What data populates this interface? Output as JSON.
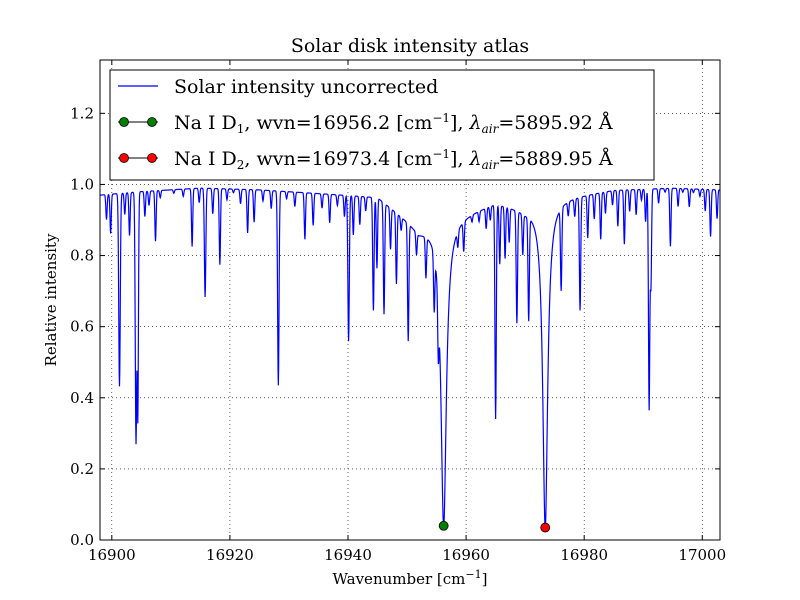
{
  "chart_data": {
    "type": "line",
    "title": "Solar disk intensity atlas",
    "xlabel": "Wavenumber [cm⁻¹]",
    "ylabel": "Relative intensity",
    "xlim": [
      16898,
      17003
    ],
    "ylim": [
      0.0,
      1.35
    ],
    "xticks": [
      16900,
      16920,
      16940,
      16960,
      16980,
      17000
    ],
    "yticks": [
      0.0,
      0.2,
      0.4,
      0.6,
      0.8,
      1.0,
      1.2
    ],
    "xtick_labels": [
      "16900",
      "16920",
      "16940",
      "16960",
      "16980",
      "17000"
    ],
    "ytick_labels": [
      "0.0",
      "0.2",
      "0.4",
      "0.6",
      "0.8",
      "1.0",
      "1.2"
    ],
    "grid": true,
    "legend_position": "top-left",
    "continuum": [
      [
        16898,
        0.97
      ],
      [
        16905,
        0.98
      ],
      [
        16915,
        0.99
      ],
      [
        16925,
        0.985
      ],
      [
        16935,
        0.975
      ],
      [
        16945,
        0.965
      ],
      [
        16950,
        0.9
      ],
      [
        16952,
        0.87
      ],
      [
        16960,
        0.92
      ],
      [
        16965,
        0.95
      ],
      [
        16970,
        0.93
      ],
      [
        16975,
        0.96
      ],
      [
        16985,
        0.985
      ],
      [
        16995,
        0.99
      ],
      [
        17003,
        0.985
      ]
    ],
    "absorption_lines": [
      [
        16899.1,
        0.9,
        0.15
      ],
      [
        16899.8,
        0.86,
        0.15
      ],
      [
        16901.3,
        0.43,
        0.18
      ],
      [
        16902.2,
        0.91,
        0.15
      ],
      [
        16903.0,
        0.85,
        0.15
      ],
      [
        16904.1,
        0.27,
        0.18
      ],
      [
        16904.4,
        0.34,
        0.15
      ],
      [
        16905.6,
        0.9,
        0.15
      ],
      [
        16906.3,
        0.93,
        0.15
      ],
      [
        16907.4,
        0.83,
        0.15
      ],
      [
        16908.2,
        0.95,
        0.15
      ],
      [
        16910.5,
        0.96,
        0.15
      ],
      [
        16912.1,
        0.95,
        0.15
      ],
      [
        16913.6,
        0.81,
        0.15
      ],
      [
        16914.8,
        0.93,
        0.15
      ],
      [
        16915.8,
        0.67,
        0.17
      ],
      [
        16917.1,
        0.9,
        0.15
      ],
      [
        16918.3,
        0.76,
        0.15
      ],
      [
        16919.5,
        0.94,
        0.15
      ],
      [
        16920.6,
        0.96,
        0.15
      ],
      [
        16921.8,
        0.93,
        0.15
      ],
      [
        16923.0,
        0.85,
        0.15
      ],
      [
        16924.1,
        0.88,
        0.15
      ],
      [
        16925.6,
        0.94,
        0.15
      ],
      [
        16927.0,
        0.92,
        0.15
      ],
      [
        16928.2,
        0.43,
        0.17
      ],
      [
        16929.6,
        0.95,
        0.15
      ],
      [
        16931.0,
        0.93,
        0.15
      ],
      [
        16932.7,
        0.84,
        0.15
      ],
      [
        16934.1,
        0.88,
        0.15
      ],
      [
        16935.6,
        0.93,
        0.15
      ],
      [
        16936.9,
        0.89,
        0.15
      ],
      [
        16938.2,
        0.94,
        0.15
      ],
      [
        16939.4,
        0.91,
        0.15
      ],
      [
        16940.1,
        0.56,
        0.17
      ],
      [
        16940.9,
        0.86,
        0.15
      ],
      [
        16942.0,
        0.89,
        0.15
      ],
      [
        16943.0,
        0.93,
        0.15
      ],
      [
        16944.3,
        0.65,
        0.16
      ],
      [
        16944.9,
        0.77,
        0.15
      ],
      [
        16946.1,
        0.65,
        0.16
      ],
      [
        16947.2,
        0.85,
        0.15
      ],
      [
        16948.2,
        0.76,
        0.15
      ],
      [
        16949.0,
        0.93,
        0.15
      ],
      [
        16950.2,
        0.61,
        0.16
      ],
      [
        16951.6,
        0.9,
        0.15
      ],
      [
        16953.2,
        0.84,
        0.15
      ],
      [
        16954.6,
        0.78,
        0.15
      ],
      [
        16955.3,
        0.73,
        0.15
      ],
      [
        16958.6,
        0.92,
        0.15
      ],
      [
        16959.6,
        0.88,
        0.15
      ],
      [
        16961.0,
        0.95,
        0.15
      ],
      [
        16962.2,
        0.94,
        0.15
      ],
      [
        16963.4,
        0.91,
        0.15
      ],
      [
        16964.1,
        0.93,
        0.15
      ],
      [
        16965.0,
        0.35,
        0.16
      ],
      [
        16965.7,
        0.8,
        0.15
      ],
      [
        16966.6,
        0.82,
        0.15
      ],
      [
        16967.3,
        0.87,
        0.15
      ],
      [
        16968.6,
        0.64,
        0.16
      ],
      [
        16969.6,
        0.85,
        0.15
      ],
      [
        16970.6,
        0.66,
        0.16
      ],
      [
        16976.1,
        0.73,
        0.16
      ],
      [
        16977.3,
        0.93,
        0.15
      ],
      [
        16978.4,
        0.92,
        0.15
      ],
      [
        16979.3,
        0.65,
        0.16
      ],
      [
        16980.6,
        0.85,
        0.15
      ],
      [
        16981.7,
        0.9,
        0.15
      ],
      [
        16982.8,
        0.84,
        0.15
      ],
      [
        16983.6,
        0.91,
        0.15
      ],
      [
        16984.8,
        0.93,
        0.15
      ],
      [
        16985.7,
        0.87,
        0.15
      ],
      [
        16986.8,
        0.82,
        0.15
      ],
      [
        16987.7,
        0.91,
        0.15
      ],
      [
        16988.8,
        0.9,
        0.15
      ],
      [
        16989.7,
        0.94,
        0.15
      ],
      [
        16990.4,
        0.88,
        0.15
      ],
      [
        16991.0,
        0.36,
        0.16
      ],
      [
        16991.3,
        0.7,
        0.15
      ],
      [
        16992.6,
        0.93,
        0.15
      ],
      [
        16993.7,
        0.96,
        0.15
      ],
      [
        16994.6,
        0.81,
        0.15
      ],
      [
        16995.9,
        0.92,
        0.15
      ],
      [
        16996.7,
        0.96,
        0.15
      ],
      [
        16997.8,
        0.92,
        0.15
      ],
      [
        16998.5,
        0.96,
        0.15
      ],
      [
        16999.6,
        0.95,
        0.15
      ],
      [
        17000.5,
        0.91,
        0.15
      ],
      [
        17001.4,
        0.84,
        0.15
      ],
      [
        17002.5,
        0.89,
        0.15
      ]
    ],
    "broad_lines": [
      [
        16956.2,
        0.037,
        0.55
      ],
      [
        16973.4,
        0.03,
        0.5
      ]
    ],
    "series": [
      {
        "name": "Solar intensity uncorrected",
        "color": "#0000ff",
        "kind": "line"
      },
      {
        "name": "Na I D₁, wvn=16956.2 [cm⁻¹], λ_air=5895.92 Å",
        "color": "#008000",
        "kind": "marker",
        "x": [
          16956.2
        ],
        "y": [
          0.04
        ]
      },
      {
        "name": "Na I D₂, wvn=16973.4 [cm⁻¹], λ_air=5889.95 Å",
        "color": "#ff0000",
        "kind": "marker",
        "x": [
          16973.4
        ],
        "y": [
          0.035
        ]
      }
    ]
  },
  "legend": {
    "item1": "Solar intensity uncorrected",
    "item2_prefix": "Na I D",
    "item2_sub": "1",
    "item2_mid": ", wvn=16956.2 [cm",
    "item2_sup": "−1",
    "item2_mid2": "], ",
    "item2_lambda": "λ",
    "item2_lsub": "air",
    "item2_suffix": "=5895.92 Å",
    "item3_prefix": "Na I D",
    "item3_sub": "2",
    "item3_mid": ", wvn=16973.4 [cm",
    "item3_sup": "−1",
    "item3_mid2": "], ",
    "item3_lambda": "λ",
    "item3_lsub": "air",
    "item3_suffix": "=5889.95 Å"
  },
  "axis_text": {
    "xlabel_main": "Wavenumber [cm",
    "xlabel_sup": "−1",
    "xlabel_end": "]"
  }
}
